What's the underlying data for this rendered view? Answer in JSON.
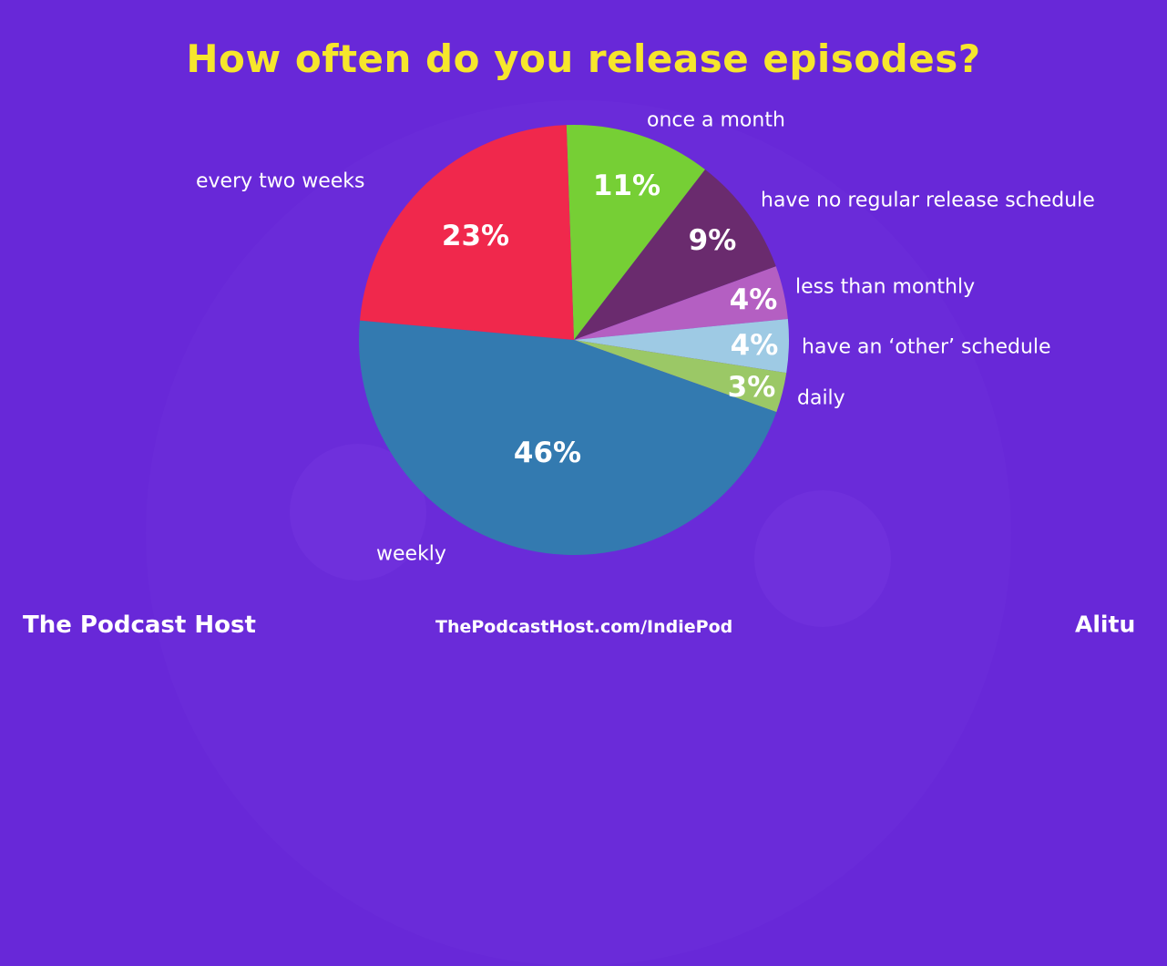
{
  "chart_data": {
    "type": "pie",
    "title": "How often do you release episodes?",
    "slices": [
      {
        "label": "once a month",
        "value": 11,
        "value_label": "11%",
        "color": "#76cf35"
      },
      {
        "label": "have no regular release schedule",
        "value": 9,
        "value_label": "9%",
        "color": "#6a2b6e"
      },
      {
        "label": "less than monthly",
        "value": 4,
        "value_label": "4%",
        "color": "#b45fc2"
      },
      {
        "label": "have an ‘other’ schedule",
        "value": 4,
        "value_label": "4%",
        "color": "#9ecae4"
      },
      {
        "label": "daily",
        "value": 3,
        "value_label": "3%",
        "color": "#9bc866"
      },
      {
        "label": "weekly",
        "value": 46,
        "value_label": "46%",
        "color": "#337ab0"
      },
      {
        "label": "every two weeks",
        "value": 23,
        "value_label": "23%",
        "color": "#f0284c"
      }
    ]
  },
  "colors": {
    "background": "#6828d8",
    "title": "#f6e62c"
  },
  "footer": {
    "brand": "The Podcast Host",
    "url": "ThePodcastHost.com/IndiePod",
    "partner": "Alitu"
  }
}
